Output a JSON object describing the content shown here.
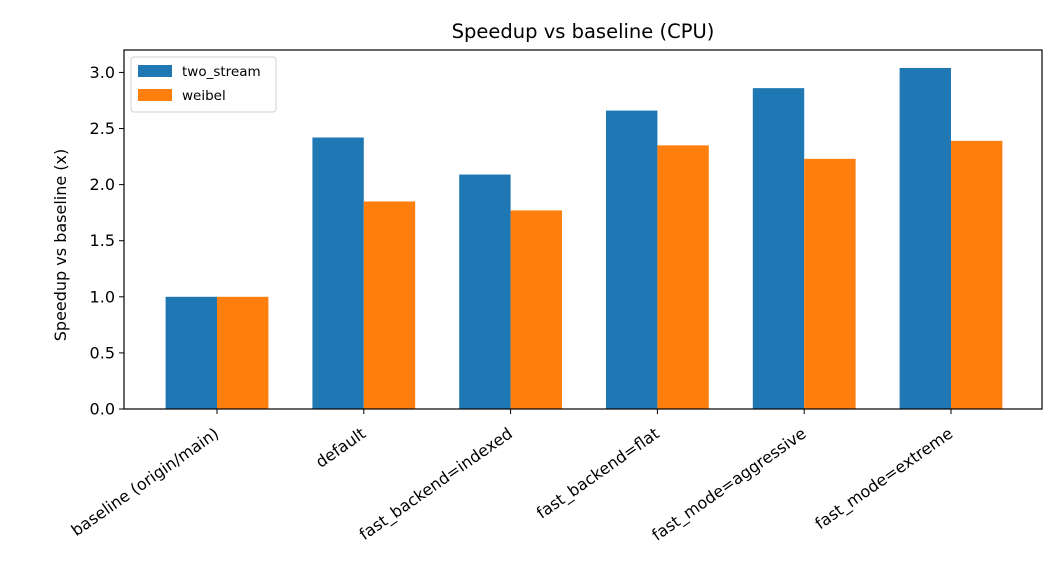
{
  "chart_data": {
    "type": "bar",
    "title": "Speedup vs baseline (CPU)",
    "xlabel": "",
    "ylabel": "Speedup vs baseline (x)",
    "categories": [
      "baseline (origin/main)",
      "default",
      "fast_backend=indexed",
      "fast_backend=flat",
      "fast_mode=aggressive",
      "fast_mode=extreme"
    ],
    "series": [
      {
        "name": "two_stream",
        "color": "#1f77b4",
        "values": [
          1.0,
          2.42,
          2.09,
          2.66,
          2.86,
          3.04
        ]
      },
      {
        "name": "weibel",
        "color": "#ff7f0e",
        "values": [
          1.0,
          1.85,
          1.77,
          2.35,
          2.23,
          2.39
        ]
      }
    ],
    "ylim": [
      0,
      3.2
    ],
    "yticks": [
      "0.0",
      "0.5",
      "1.0",
      "1.5",
      "2.0",
      "2.5",
      "3.0"
    ],
    "grid": false,
    "legend_position": "top-left"
  }
}
